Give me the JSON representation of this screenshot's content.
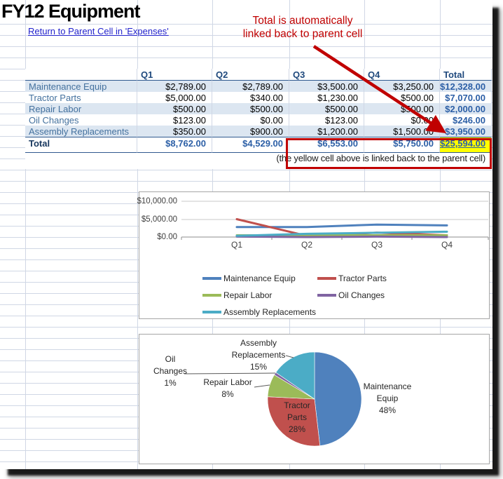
{
  "title": "FY12 Equipment",
  "nav_link": "Return to Parent Cell in 'Expenses'",
  "annotation": {
    "line1": "Total is automatically",
    "line2": "linked back to parent cell"
  },
  "table": {
    "headers": [
      "Q1",
      "Q2",
      "Q3",
      "Q4",
      "Total"
    ],
    "rows": [
      {
        "label": "Maintenance Equip",
        "values": [
          "$2,789.00",
          "$2,789.00",
          "$3,500.00",
          "$3,250.00",
          "$12,328.00"
        ]
      },
      {
        "label": "Tractor Parts",
        "values": [
          "$5,000.00",
          "$340.00",
          "$1,230.00",
          "$500.00",
          "$7,070.00"
        ]
      },
      {
        "label": "Repair Labor",
        "values": [
          "$500.00",
          "$500.00",
          "$500.00",
          "$500.00",
          "$2,000.00"
        ]
      },
      {
        "label": "Oil Changes",
        "values": [
          "$123.00",
          "$0.00",
          "$123.00",
          "$0.00",
          "$246.00"
        ]
      },
      {
        "label": "Assembly Replacements",
        "values": [
          "$350.00",
          "$900.00",
          "$1,200.00",
          "$1,500.00",
          "$3,950.00"
        ]
      }
    ],
    "total": {
      "label": "Total",
      "values": [
        "$8,762.00",
        "$4,529.00",
        "$6,553.00",
        "$5,750.00",
        "$25,594.00"
      ]
    },
    "note": "(the yellow cell above is linked back to the parent cell)"
  },
  "chart_data": [
    {
      "type": "line",
      "title": "",
      "xlabel": "",
      "ylabel": "",
      "categories": [
        "Q1",
        "Q2",
        "Q3",
        "Q4"
      ],
      "series": [
        {
          "name": "Maintenance Equip",
          "color": "#4F81BD",
          "values": [
            2789,
            2789,
            3500,
            3250
          ]
        },
        {
          "name": "Tractor Parts",
          "color": "#C0504D",
          "values": [
            5000,
            340,
            1230,
            500
          ]
        },
        {
          "name": "Repair Labor",
          "color": "#9BBB59",
          "values": [
            500,
            500,
            500,
            500
          ]
        },
        {
          "name": "Oil Changes",
          "color": "#8064A2",
          "values": [
            123,
            0,
            123,
            0
          ]
        },
        {
          "name": "Assembly Replacements",
          "color": "#4BACC6",
          "values": [
            350,
            900,
            1200,
            1500
          ]
        }
      ],
      "ylim": [
        0,
        10000
      ],
      "ytick_labels": [
        "$10,000.00",
        "$5,000.00",
        "$0.00"
      ],
      "grid": true,
      "legend_position": "bottom"
    },
    {
      "type": "pie",
      "slices": [
        {
          "label": "Maintenance Equip",
          "pct": "48%",
          "value": 12328,
          "color": "#4F81BD"
        },
        {
          "label": "Tractor Parts",
          "pct": "28%",
          "value": 7070,
          "color": "#C0504D"
        },
        {
          "label": "Repair Labor",
          "pct": "8%",
          "value": 2000,
          "color": "#9BBB59"
        },
        {
          "label": "Oil Changes",
          "pct": "1%",
          "value": 246,
          "color": "#8064A2"
        },
        {
          "label": "Assembly Replacements",
          "pct": "15%",
          "value": 3950,
          "color": "#4BACC6"
        }
      ],
      "labels": {
        "maintenance": [
          "Maintenance",
          "Equip",
          "48%"
        ],
        "tractor": [
          "Tractor",
          "Parts",
          "28%"
        ],
        "repair": [
          "Repair Labor",
          "8%"
        ],
        "oil": [
          "Oil",
          "Changes",
          "1%"
        ],
        "assembly": [
          "Assembly",
          "Replacements",
          "15%"
        ]
      }
    }
  ],
  "colors": {
    "annotation_red": "#C00000",
    "highlight_yellow": "#FFFF00",
    "row_band_blue": "#DCE6F1",
    "gridline_blue": "#D0D7E5",
    "header_navy": "#1F497D",
    "label_blue": "#44719E",
    "total_blue": "#2C5FA6",
    "link_blue": "#2323CC"
  }
}
